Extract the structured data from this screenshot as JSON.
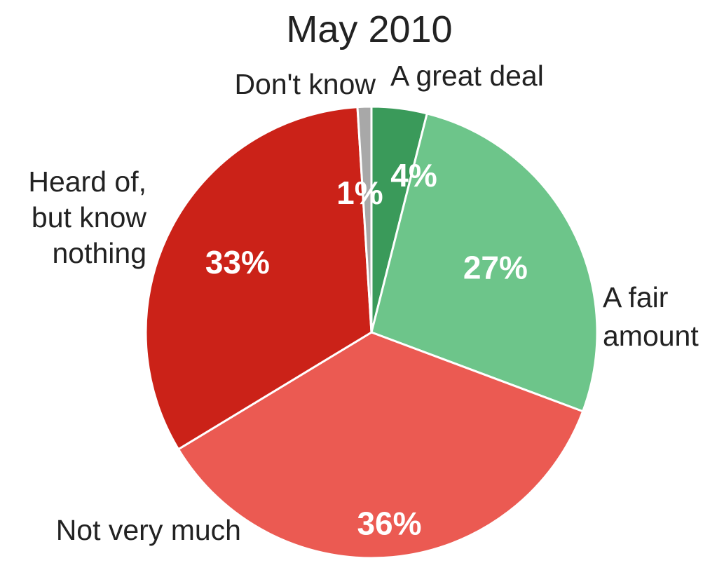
{
  "chart_data": {
    "type": "pie",
    "title": "May 2010",
    "start_angle_deg": 0,
    "direction": "clockwise",
    "slices": [
      {
        "label": "A great deal",
        "value": 4,
        "value_label": "4%",
        "color": "#3a9a5a"
      },
      {
        "label": "A fair amount",
        "value": 27,
        "value_label": "27%",
        "color": "#6dc58a"
      },
      {
        "label": "Not very much",
        "value": 36,
        "value_label": "36%",
        "color": "#eb5a52"
      },
      {
        "label": "Heard of, but know nothing",
        "value": 33,
        "value_label": "33%",
        "color": "#cb2218"
      },
      {
        "label": "Don't know",
        "value": 1,
        "value_label": "1%",
        "color": "#a8a8a8"
      }
    ],
    "separator_color": "#ffffff"
  }
}
